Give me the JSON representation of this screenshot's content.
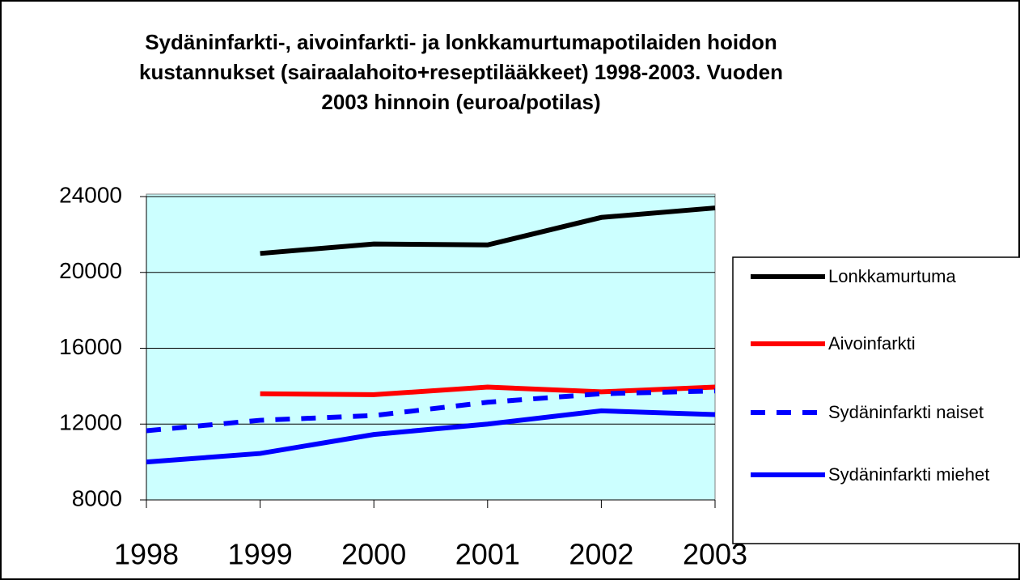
{
  "chart_data": {
    "type": "line",
    "title": "Sydäninfarkti-, aivoinfarkti- ja lonkkamurtumapotilaiden hoidon kustannukset  (sairaalahoito+reseptilääkkeet) 1998-2003. Vuoden 2003 hinnoin (euroa/potilas)",
    "categories": [
      "1998",
      "1999",
      "2000",
      "2001",
      "2002",
      "2003"
    ],
    "series": [
      {
        "name": "Lonkkamurtuma",
        "color": "#000000",
        "dash": false,
        "values": [
          null,
          21000,
          21500,
          21450,
          22900,
          23400
        ]
      },
      {
        "name": "Aivoinfarkti",
        "color": "#ff0000",
        "dash": false,
        "values": [
          null,
          13600,
          13550,
          13950,
          13700,
          13950
        ]
      },
      {
        "name": "Sydäninfarkti naiset",
        "color": "#0000ff",
        "dash": true,
        "values": [
          11650,
          12200,
          12450,
          13150,
          13600,
          13750
        ]
      },
      {
        "name": "Sydäninfarkti miehet",
        "color": "#0000ff",
        "dash": false,
        "values": [
          10000,
          10450,
          11450,
          12000,
          12700,
          12500
        ]
      }
    ],
    "ylim": [
      8000,
      24000
    ],
    "yticks": [
      8000,
      12000,
      16000,
      20000,
      24000
    ],
    "grid": true,
    "plot_background": "#ccffff",
    "legend": "right"
  }
}
